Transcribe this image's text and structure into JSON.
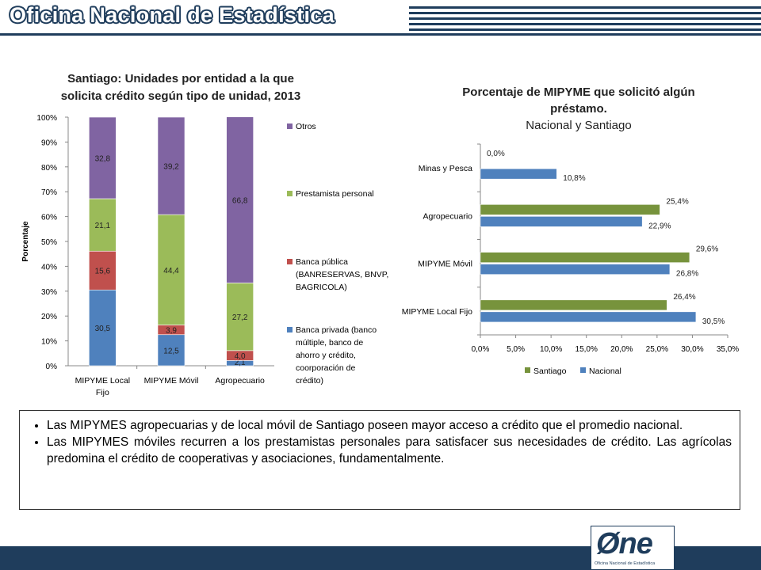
{
  "header": {
    "title": "Oficina Nacional de Estadística"
  },
  "colors": {
    "navy": "#1f3d5c",
    "otros": "#8064a2",
    "prestamista": "#9bbb59",
    "banca_publica": "#c0504d",
    "banca_privada": "#4f81bd",
    "santiago": "#77933c",
    "nacional": "#4f81bd"
  },
  "chart_data": [
    {
      "type": "bar",
      "stacked": true,
      "percent_stacked": true,
      "title": "Santiago: Unidades por entidad a la que solicita crédito según tipo de unidad, 2013",
      "title_lines": [
        "Santiago: Unidades por entidad a la que",
        "solicita crédito según tipo de unidad, 2013"
      ],
      "ylabel": "Porcentaje",
      "ylim": [
        0,
        100
      ],
      "yticks": [
        "0%",
        "10%",
        "20%",
        "30%",
        "40%",
        "50%",
        "60%",
        "70%",
        "80%",
        "90%",
        "100%"
      ],
      "categories": [
        "MIPYME Local Fijo",
        "MIPYME Móvil",
        "Agropecuario"
      ],
      "category_lines": [
        [
          "MIPYME Local",
          "Fijo"
        ],
        [
          "MIPYME Móvil"
        ],
        [
          "Agropecuario"
        ]
      ],
      "series": [
        {
          "name": "Banca privada (banco múltiple, banco de ahorro y crédito, coorporación de crédito)",
          "values": [
            30.5,
            12.5,
            2.1
          ],
          "labels": [
            "30,5",
            "12,5",
            "2,1"
          ],
          "legend_lines": [
            "Banca privada (banco",
            "múltiple, banco de",
            "ahorro y crédito,",
            "coorporación de",
            "crédito)"
          ]
        },
        {
          "name": "Banca pública (BANRESERVAS, BNVP, BAGRICOLA)",
          "values": [
            15.6,
            3.9,
            4.0
          ],
          "labels": [
            "15,6",
            "3,9",
            "4,0"
          ],
          "legend_lines": [
            "Banca pública",
            "(BANRESERVAS, BNVP,",
            "BAGRICOLA)"
          ]
        },
        {
          "name": "Prestamista personal",
          "values": [
            21.1,
            44.4,
            27.2
          ],
          "labels": [
            "21,1",
            "44,4",
            "27,2"
          ],
          "legend_lines": [
            "Prestamista personal"
          ]
        },
        {
          "name": "Otros",
          "values": [
            32.8,
            39.2,
            66.8
          ],
          "labels": [
            "32,8",
            "39,2",
            "66,8"
          ],
          "legend_lines": [
            "Otros"
          ]
        }
      ],
      "legend": "right"
    },
    {
      "type": "bar",
      "orientation": "horizontal",
      "title": "Porcentaje de MIPYME que solicitó algún préstamo. Nacional y Santiago",
      "title_lines": [
        "Porcentaje de MIPYME que solicitó algún",
        "préstamo.",
        "Nacional y Santiago"
      ],
      "xlim": [
        0,
        35
      ],
      "xticks": [
        "0,0%",
        "5,0%",
        "10,0%",
        "15,0%",
        "20,0%",
        "25,0%",
        "30,0%",
        "35,0%"
      ],
      "categories": [
        "Minas y Pesca",
        "Agropecuario",
        "MIPYME Móvil",
        "MIPYME Local Fijo"
      ],
      "series": [
        {
          "name": "Santiago",
          "values": [
            0.0,
            25.4,
            29.6,
            26.4
          ],
          "labels": [
            "0,0%",
            "25,4%",
            "29,6%",
            "26,4%"
          ]
        },
        {
          "name": "Nacional",
          "values": [
            10.8,
            22.9,
            26.8,
            30.5
          ],
          "labels": [
            "10,8%",
            "22,9%",
            "26,8%",
            "30,5%"
          ]
        }
      ],
      "legend": "bottom"
    }
  ],
  "notes": [
    "Las MIPYMES agropecuarias y de local móvil de Santiago poseen mayor acceso a crédito que el promedio nacional.",
    "Las MIPYMES móviles recurren a los prestamistas personales para satisfacer sus necesidades de crédito. Las agrícolas predomina el crédito de cooperativas y asociaciones, fundamentalmente."
  ],
  "logo": {
    "mark": "Øne",
    "subtitle": "Oficina Nacional de Estadística"
  }
}
